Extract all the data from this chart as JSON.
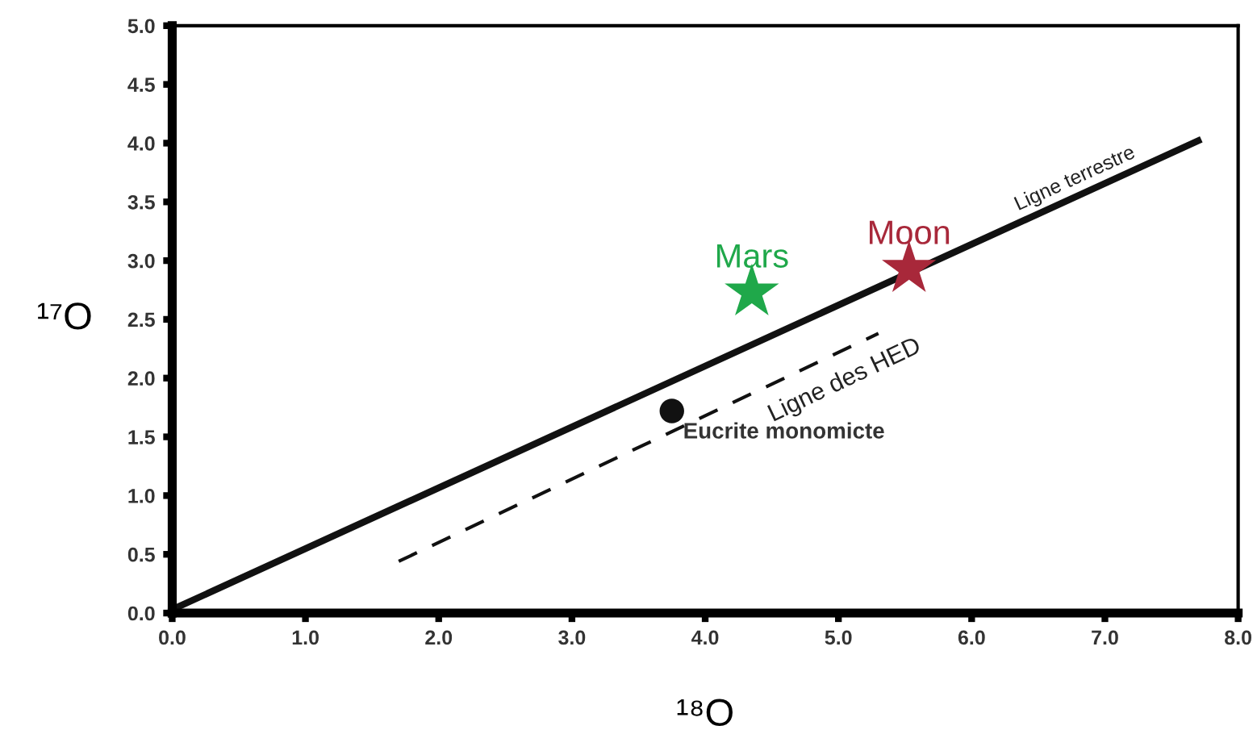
{
  "chart_data": {
    "type": "line",
    "xlabel": "¹⁸O",
    "ylabel": "¹⁷O",
    "xlim": [
      0,
      8
    ],
    "ylim": [
      0,
      5
    ],
    "xticks": [
      {
        "value": 0,
        "label": "0.0"
      },
      {
        "value": 1,
        "label": "1.0"
      },
      {
        "value": 2,
        "label": "2.0"
      },
      {
        "value": 3,
        "label": "3.0"
      },
      {
        "value": 4,
        "label": "4.0"
      },
      {
        "value": 5,
        "label": "5.0"
      },
      {
        "value": 6,
        "label": "6.0"
      },
      {
        "value": 7,
        "label": "7.0"
      },
      {
        "value": 8,
        "label": "8.0"
      }
    ],
    "yticks": [
      {
        "value": 0,
        "label": "0.0"
      },
      {
        "value": 0.5,
        "label": "0.5"
      },
      {
        "value": 1,
        "label": "1.0"
      },
      {
        "value": 1.5,
        "label": "1.5"
      },
      {
        "value": 2,
        "label": "2.0"
      },
      {
        "value": 2.5,
        "label": "2.5"
      },
      {
        "value": 3,
        "label": "3.0"
      },
      {
        "value": 3.5,
        "label": "3.5"
      },
      {
        "value": 4,
        "label": "4.0"
      },
      {
        "value": 4.5,
        "label": "4.5"
      },
      {
        "value": 5,
        "label": "5.0"
      }
    ],
    "grid": false,
    "legend": false,
    "series": [
      {
        "name": "Ligne terrestre",
        "color": "#111111",
        "line_style": "solid",
        "marker": "none",
        "x": [
          0,
          7.7
        ],
        "values": [
          0.03,
          4.02
        ]
      },
      {
        "name": "Ligne des HED",
        "color": "#111111",
        "line_style": "dashed",
        "marker": "none",
        "x": [
          1.7,
          5.3
        ],
        "values": [
          0.44,
          2.38
        ]
      },
      {
        "name": "Mars",
        "type": "scatter",
        "color": "#1fa84a",
        "marker": "star",
        "x": [
          4.35
        ],
        "values": [
          2.73
        ]
      },
      {
        "name": "Moon",
        "type": "scatter",
        "color": "#a8283a",
        "marker": "star",
        "x": [
          5.53
        ],
        "values": [
          2.93
        ]
      },
      {
        "name": "Eucrite monomicte",
        "type": "scatter",
        "color": "#111111",
        "marker": "circle",
        "x": [
          3.75
        ],
        "values": [
          1.72
        ]
      }
    ]
  }
}
